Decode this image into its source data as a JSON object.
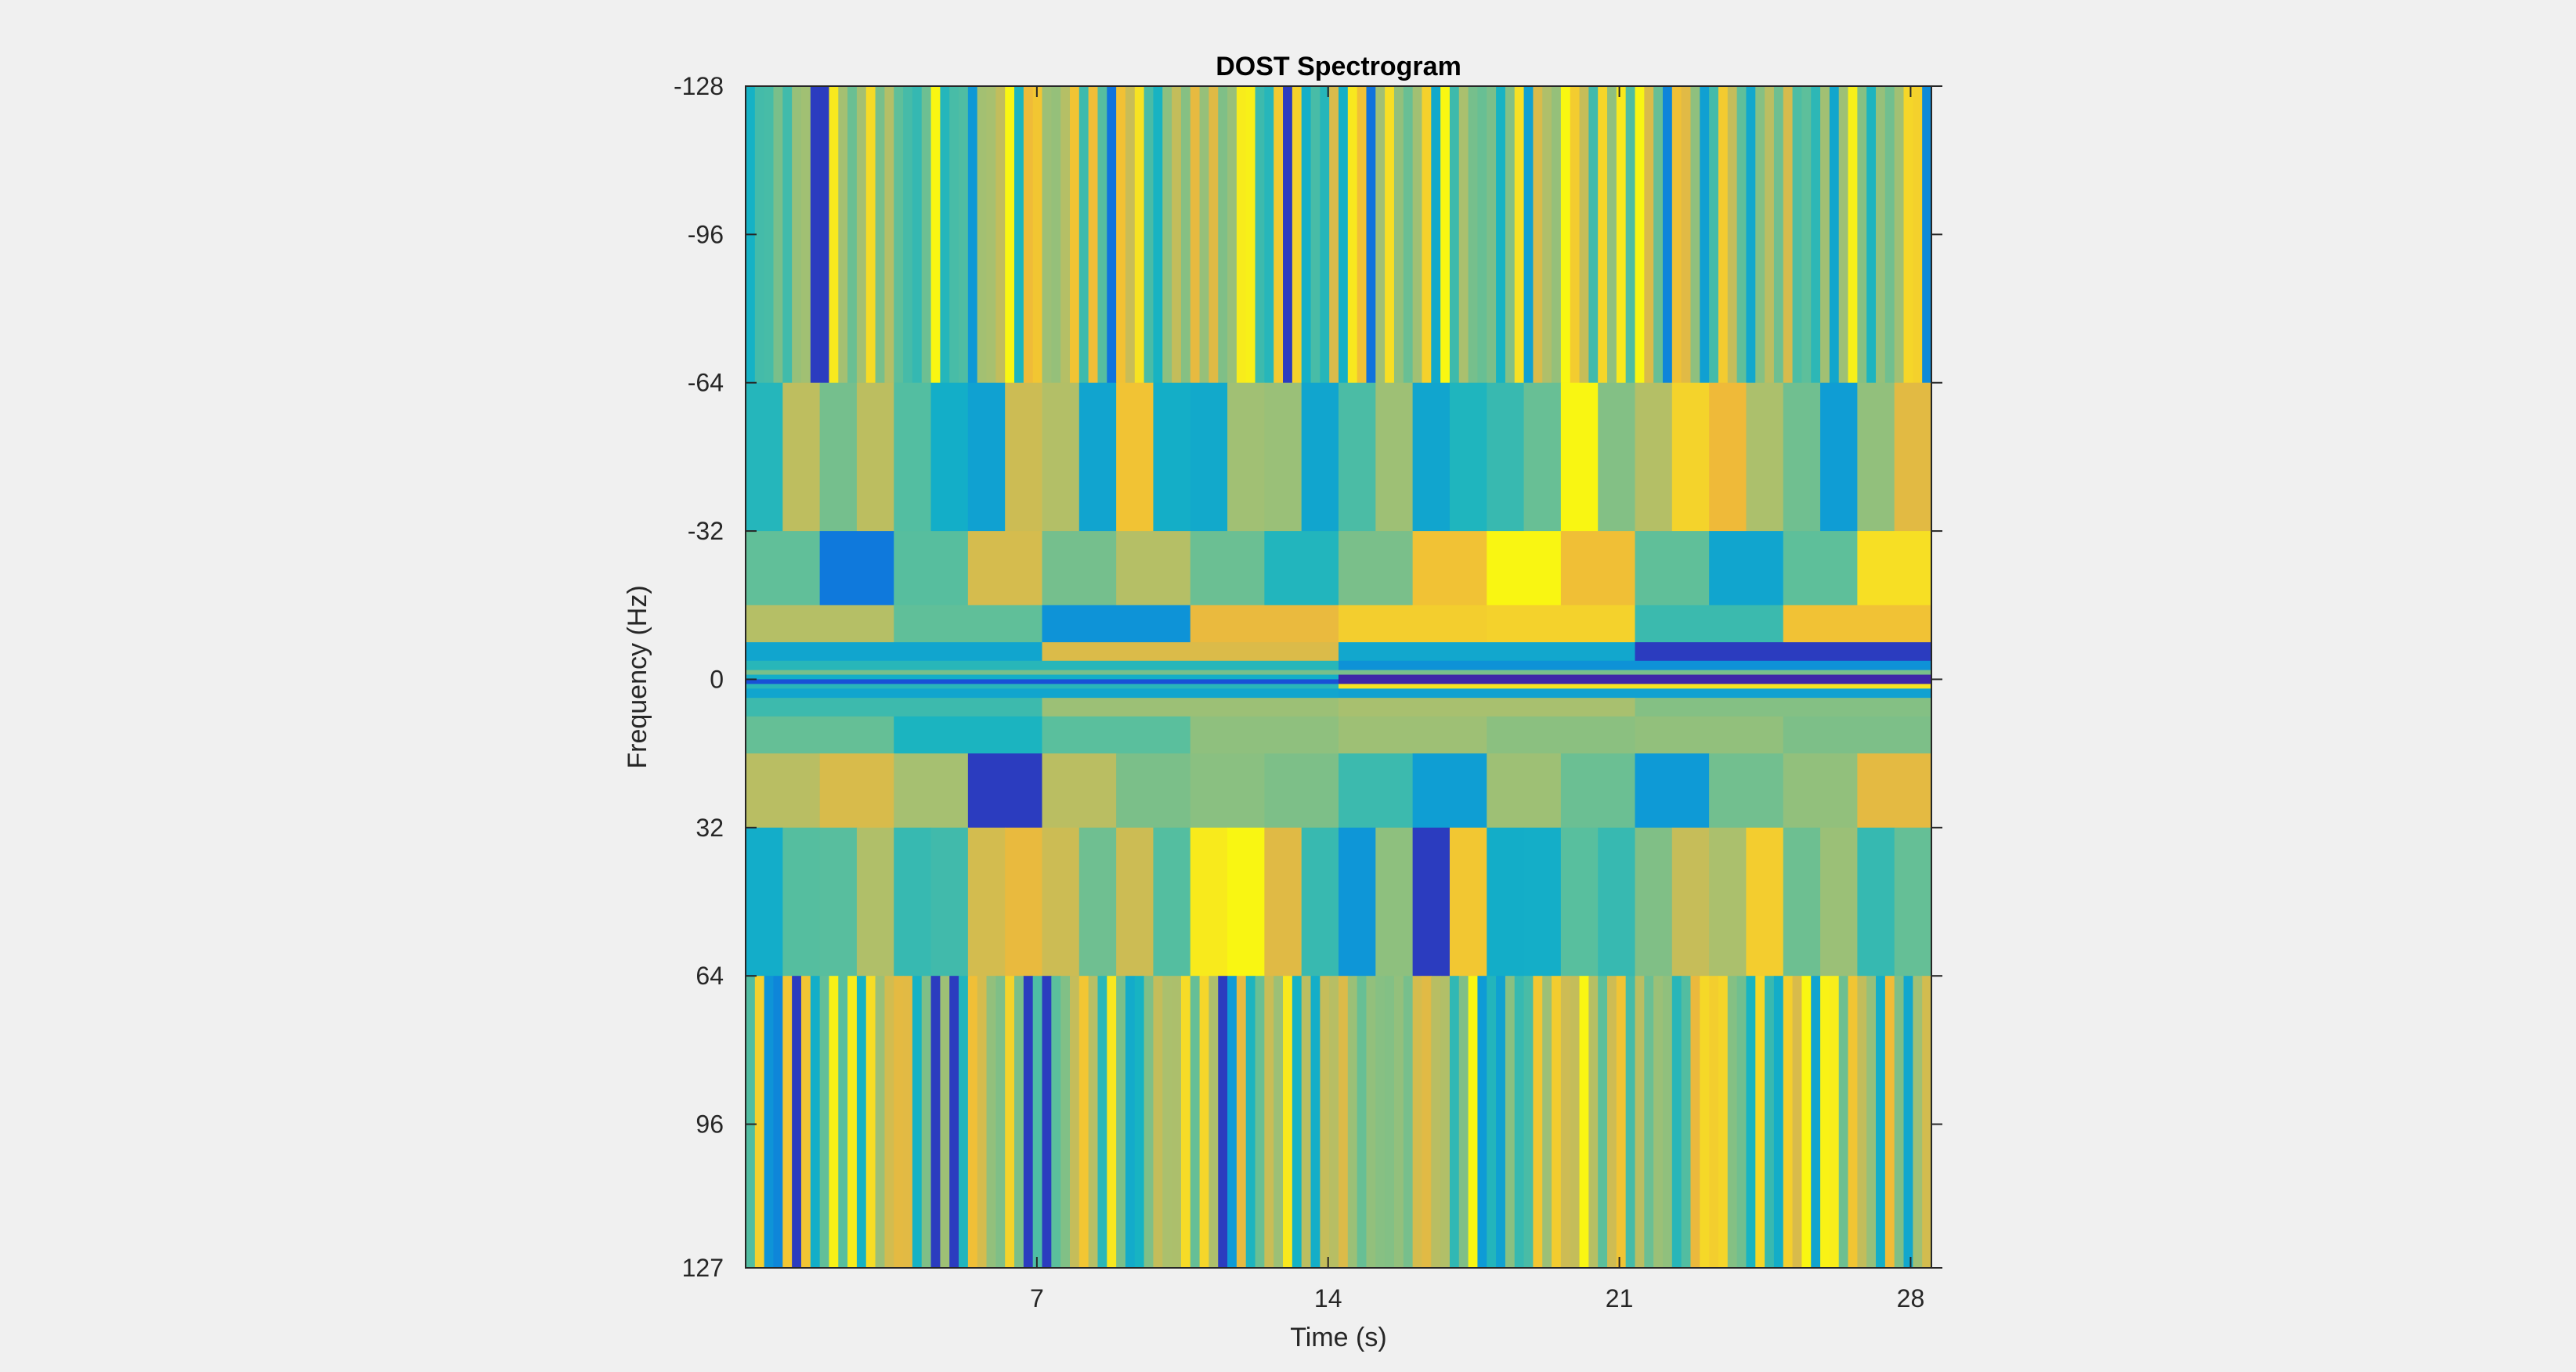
{
  "chart_data": {
    "type": "heatmap",
    "title": "DOST Spectrogram",
    "xlabel": "Time (s)",
    "ylabel": "Frequency (Hz)",
    "xlim": [
      0,
      28.5
    ],
    "ylim": [
      -128,
      127
    ],
    "x_ticks": [
      7,
      14,
      21,
      28
    ],
    "y_ticks": [
      -128,
      -96,
      -64,
      -32,
      0,
      32,
      64,
      96,
      127
    ],
    "colormap": "parula",
    "colormap_colors": [
      "#3e26a8",
      "#0f5ce1",
      "#0e9ad6",
      "#15b3c4",
      "#5bbf9c",
      "#a7c070",
      "#efb93a",
      "#f8e620",
      "#f9fb0e"
    ],
    "frequency_bands": [
      {
        "f_min": -128,
        "f_max": -64,
        "cells": 128,
        "seed": 11
      },
      {
        "f_min": -64,
        "f_max": -32,
        "cells": 32,
        "seed": 23
      },
      {
        "f_min": -32,
        "f_max": -16,
        "cells": 16,
        "seed": 37
      },
      {
        "f_min": -16,
        "f_max": -8,
        "cells": 8,
        "seed": 41
      },
      {
        "f_min": -8,
        "f_max": -4,
        "cells": 4,
        "seed": 53
      },
      {
        "f_min": -4,
        "f_max": -2,
        "cells": 2,
        "seed": 67
      },
      {
        "f_min": -2,
        "f_max": -1,
        "cells": 1,
        "seed": 71
      },
      {
        "f_min": -1,
        "f_max": 0,
        "cells": 1,
        "seed": 79
      },
      {
        "f_min": 0,
        "f_max": 1,
        "cells": 1,
        "seed": 83
      },
      {
        "f_min": 1,
        "f_max": 2,
        "cells": 2,
        "seed": 89
      },
      {
        "f_min": 2,
        "f_max": 4,
        "cells": 2,
        "seed": 97
      },
      {
        "f_min": 4,
        "f_max": 8,
        "cells": 4,
        "seed": 101
      },
      {
        "f_min": 8,
        "f_max": 16,
        "cells": 8,
        "seed": 103
      },
      {
        "f_min": 16,
        "f_max": 32,
        "cells": 16,
        "seed": 107
      },
      {
        "f_min": 32,
        "f_max": 64,
        "cells": 32,
        "seed": 109
      },
      {
        "f_min": 64,
        "f_max": 127,
        "cells": 128,
        "seed": 113
      }
    ],
    "narrow_band_overrides": [
      {
        "f_min": -1,
        "f_max": 0,
        "values": [
          0.35,
          0.35,
          0.0,
          0.0
        ]
      },
      {
        "f_min": 0,
        "f_max": 1,
        "values": [
          0.1,
          0.1,
          0.0,
          0.0
        ]
      }
    ]
  }
}
